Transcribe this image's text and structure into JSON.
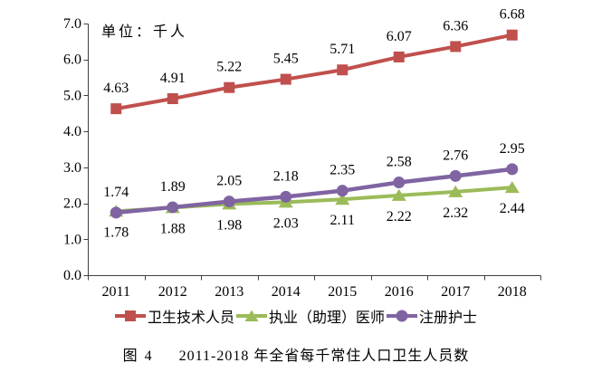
{
  "figure": {
    "unit_label": "单位：千人",
    "caption_prefix": "图 4",
    "caption_text": "2011-2018 年全省每千常住人口卫生人员数"
  },
  "chart_data": {
    "type": "line",
    "title": "图 4 2011-2018 年全省每千常住人口卫生人员数",
    "unit_label": "单位：千人",
    "xlabel": "",
    "ylabel": "",
    "categories": [
      "2011",
      "2012",
      "2013",
      "2014",
      "2015",
      "2016",
      "2017",
      "2018"
    ],
    "series": [
      {
        "name": "卫生技术人员",
        "marker": "square",
        "color": "#C0504D",
        "label_position": "above",
        "values": [
          4.63,
          4.91,
          5.22,
          5.45,
          5.71,
          6.07,
          6.36,
          6.68
        ]
      },
      {
        "name": "执业（助理）医师",
        "marker": "triangle",
        "color": "#9BBB59",
        "label_position": "below",
        "values": [
          1.78,
          1.88,
          1.98,
          2.03,
          2.11,
          2.22,
          2.32,
          2.44
        ]
      },
      {
        "name": "注册护士",
        "marker": "circle",
        "color": "#8064A2",
        "label_position": "above",
        "values": [
          1.74,
          1.89,
          2.05,
          2.18,
          2.35,
          2.58,
          2.76,
          2.95
        ]
      }
    ],
    "ylim": [
      0.0,
      7.0
    ],
    "ytick_step": 1.0,
    "ytick_decimals": 1,
    "value_label_decimals": 2,
    "data_labels_shown": true,
    "grid": false,
    "legend_position": "bottom",
    "axis_color": "#404040",
    "text_color": "#000000",
    "background_color": "#FFFFFF"
  }
}
